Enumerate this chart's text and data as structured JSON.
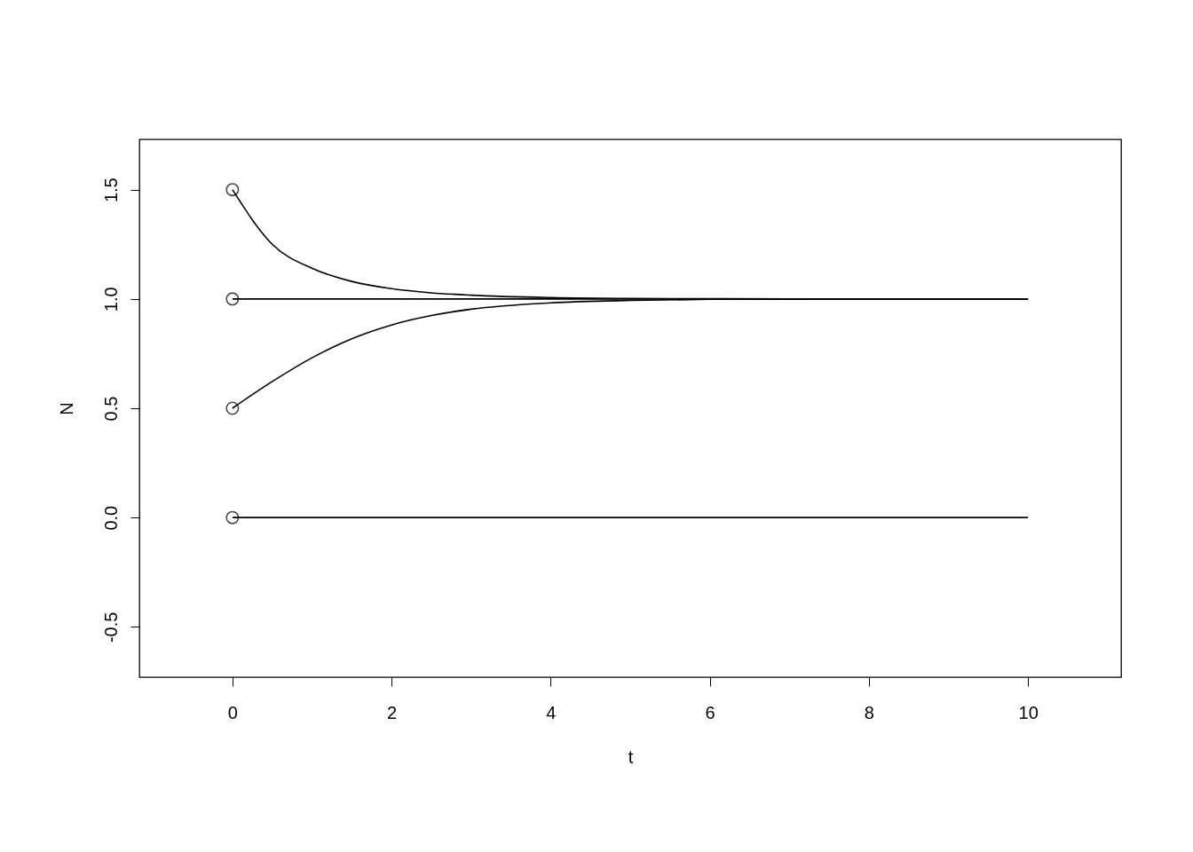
{
  "chart_data": {
    "type": "line",
    "xlabel": "t",
    "ylabel": "N",
    "xlim": [
      -1.17,
      11.17
    ],
    "ylim": [
      -0.73,
      1.73
    ],
    "xticks": [
      0,
      2,
      4,
      6,
      8,
      10
    ],
    "yticks": [
      {
        "value": -0.5,
        "label": "-0.5"
      },
      {
        "value": 0,
        "label": "0.0"
      },
      {
        "value": 0.5,
        "label": "0.5"
      },
      {
        "value": 1,
        "label": "1.0"
      },
      {
        "value": 1.5,
        "label": "1.5"
      }
    ],
    "series": [
      {
        "color": "#000000",
        "x": [
          0,
          0.5,
          1,
          1.5,
          2,
          2.5,
          3,
          4,
          5,
          6,
          7,
          8,
          10
        ],
        "values": [
          1.5,
          1.25,
          1.14,
          1.08,
          1.047,
          1.028,
          1.017,
          1.006,
          1.002,
          1.001,
          1.0,
          1.0,
          1.0
        ]
      },
      {
        "color": "#000000",
        "x": [
          0,
          10
        ],
        "values": [
          1,
          1
        ]
      },
      {
        "color": "#000000",
        "x": [
          0,
          0.5,
          1,
          1.5,
          2,
          2.5,
          3,
          4,
          5,
          6,
          7,
          8,
          10
        ],
        "values": [
          0.5,
          0.622,
          0.731,
          0.818,
          0.881,
          0.924,
          0.953,
          0.982,
          0.993,
          0.998,
          0.999,
          1.0,
          1.0
        ]
      },
      {
        "color": "#000000",
        "x": [
          0,
          10
        ],
        "values": [
          0,
          0
        ]
      },
      {
        "type": "scatter",
        "marker": "circle",
        "color": "#000000",
        "x": [
          0,
          0,
          0,
          0
        ],
        "values": [
          1.5,
          1,
          0.5,
          0
        ]
      }
    ]
  }
}
